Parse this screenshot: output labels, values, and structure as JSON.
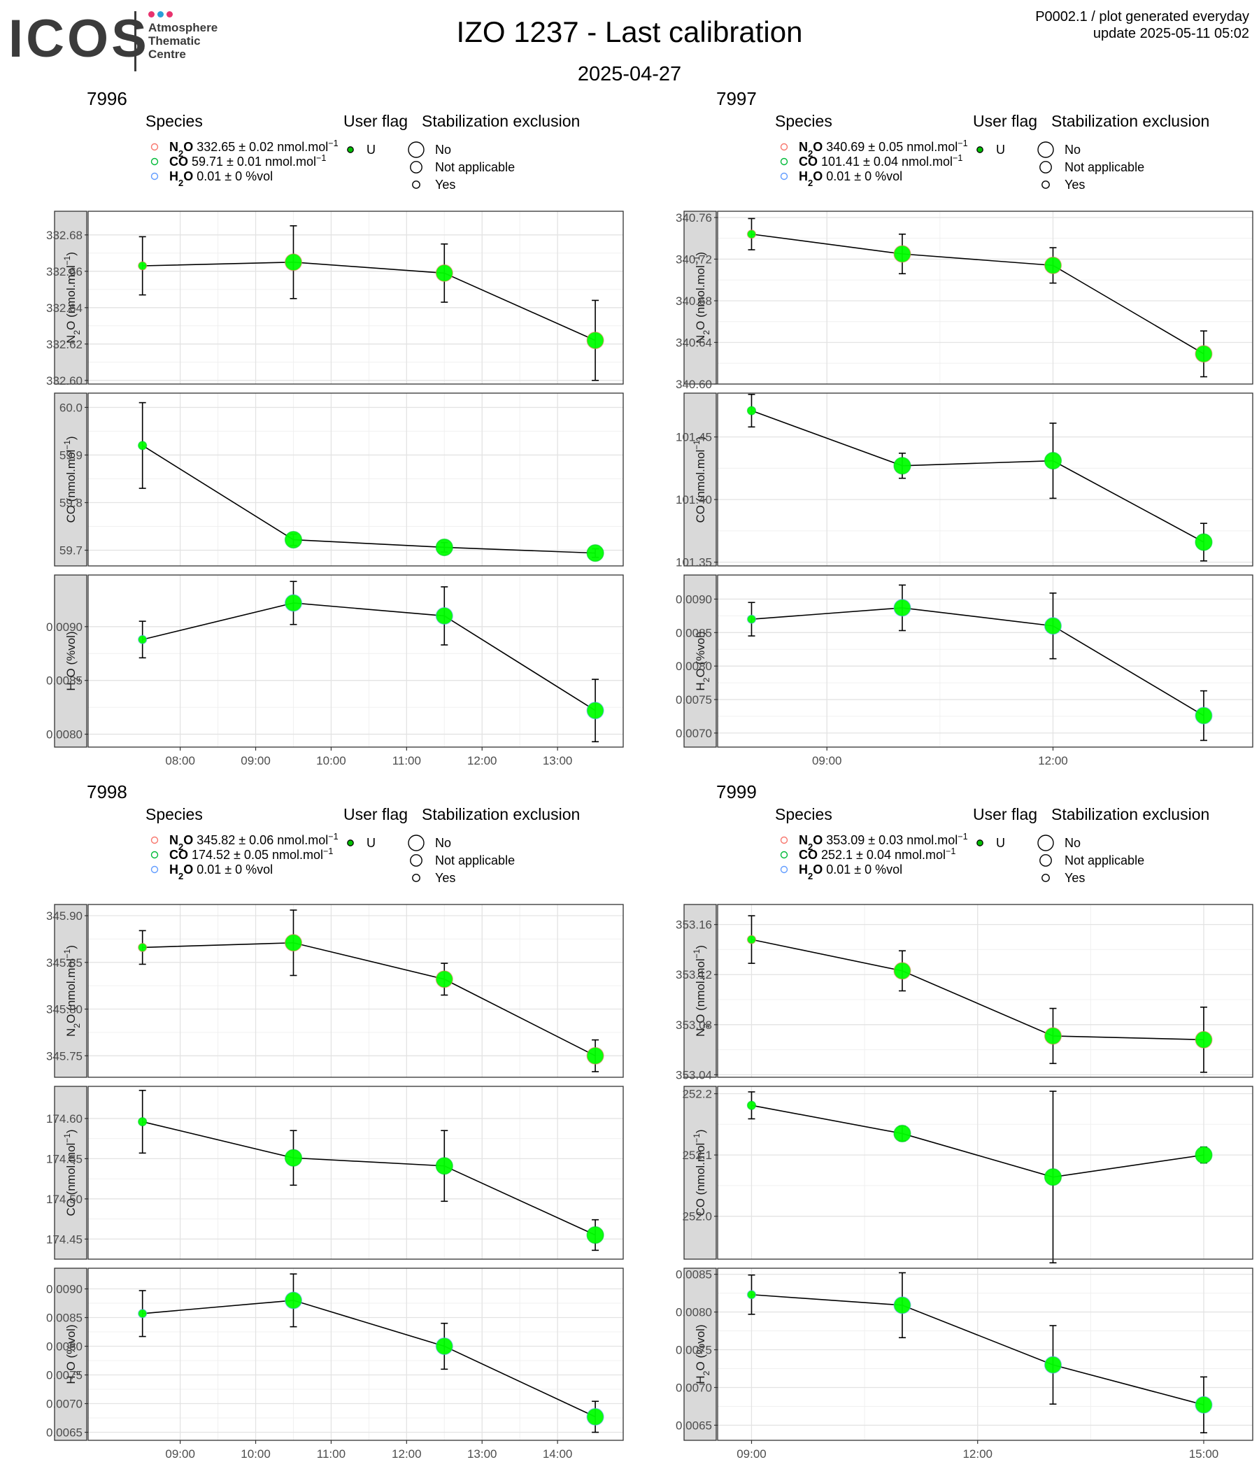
{
  "header": {
    "logo_text": "ICOS",
    "logo_sub": [
      "Atmosphere",
      "Thematic",
      "Centre"
    ],
    "logo_dot_colors": [
      "#e8336e",
      "#2a9fd8",
      "#e8336e"
    ],
    "title": "IZO 1237 - Last calibration",
    "subtitle": "2025-04-27",
    "meta_line1": "P0002.1 / plot generated everyday",
    "meta_line2": "update  2025-05-11 05:02"
  },
  "legend_labels": {
    "species_title": "Species",
    "user_flag_title": "User flag",
    "stab_title": "Stabilization exclusion",
    "user_flag_value": "U",
    "stab_values": [
      "No",
      "Not applicable",
      "Yes"
    ],
    "species_colors": [
      "#f8766d",
      "#00ba38",
      "#619cff"
    ],
    "point_color": "#00ff00",
    "flag_dot_color": "#00c000"
  },
  "chart_data": [
    {
      "type": "line",
      "title": "7996",
      "legend": [
        {
          "species": "N2O",
          "text": "332.65 ± 0.02 nmol.mol",
          "unit_sup": "−1"
        },
        {
          "species": "CO",
          "text": "59.71 ± 0.01 nmol.mol",
          "unit_sup": "−1"
        },
        {
          "species": "H2O",
          "text": "0.01 ± 0 %vol",
          "unit_sup": ""
        }
      ],
      "x_ticks": [
        "08:00",
        "09:00",
        "10:00",
        "11:00",
        "12:00",
        "13:00"
      ],
      "x_tick_hours": [
        8,
        9,
        10,
        11,
        12,
        13
      ],
      "xlim": [
        6.78,
        13.87
      ],
      "x_hours": [
        7.5,
        9.5,
        11.5,
        13.5
      ],
      "stab": [
        "Not applicable",
        "No",
        "No",
        "No"
      ],
      "panels": [
        {
          "species": "N2O",
          "ylabel": "N2O (nmol.mol-1)",
          "ylim": [
            332.598,
            332.693
          ],
          "yticks": [
            332.6,
            332.62,
            332.64,
            332.66,
            332.68
          ],
          "ytick_labels": [
            "332.60",
            "332.62",
            "332.64",
            "332.66",
            "332.68"
          ],
          "values": [
            332.663,
            332.665,
            332.659,
            332.622
          ],
          "errors": [
            0.016,
            0.02,
            0.016,
            0.022
          ]
        },
        {
          "species": "CO",
          "ylabel": "CO (nmol.mol-1)",
          "ylim": [
            59.667,
            60.03
          ],
          "yticks": [
            59.7,
            59.8,
            59.9,
            60.0
          ],
          "ytick_labels": [
            "59.7",
            "59.8",
            "59.9",
            "60.0"
          ],
          "values": [
            59.92,
            59.722,
            59.706,
            59.694
          ],
          "errors": [
            0.09,
            0.012,
            0.01,
            0.009
          ]
        },
        {
          "species": "H2O",
          "ylabel": "H2O (%vol)",
          "ylim": [
            0.00788,
            0.00948
          ],
          "yticks": [
            0.008,
            0.0085,
            0.009
          ],
          "ytick_labels": [
            "0.0080",
            "0.0085",
            "0.0090"
          ],
          "values": [
            0.00888,
            0.00922,
            0.0091,
            0.00822
          ],
          "errors": [
            0.00017,
            0.0002,
            0.00027,
            0.00029
          ]
        }
      ]
    },
    {
      "type": "line",
      "title": "7997",
      "legend": [
        {
          "species": "N2O",
          "text": "340.69 ± 0.05 nmol.mol",
          "unit_sup": "−1"
        },
        {
          "species": "CO",
          "text": "101.41 ± 0.04 nmol.mol",
          "unit_sup": "−1"
        },
        {
          "species": "H2O",
          "text": "0.01 ± 0 %vol",
          "unit_sup": ""
        }
      ],
      "x_ticks": [
        "09:00",
        "12:00"
      ],
      "x_tick_hours": [
        9,
        12
      ],
      "xlim": [
        7.55,
        14.65
      ],
      "x_hours": [
        8.0,
        10.0,
        12.0,
        14.0
      ],
      "stab": [
        "Not applicable",
        "No",
        "No",
        "No"
      ],
      "panels": [
        {
          "species": "N2O",
          "ylabel": "N2O (nmol.mol-1)",
          "ylim": [
            340.6,
            340.766
          ],
          "yticks": [
            340.6,
            340.64,
            340.68,
            340.72,
            340.76
          ],
          "ytick_labels": [
            "340.60",
            "340.64",
            "340.68",
            "340.72",
            "340.76"
          ],
          "values": [
            340.744,
            340.725,
            340.714,
            340.629
          ],
          "errors": [
            0.015,
            0.019,
            0.017,
            0.022
          ]
        },
        {
          "species": "CO",
          "ylabel": "CO (nmol.mol-1)",
          "ylim": [
            101.347,
            101.485
          ],
          "yticks": [
            101.35,
            101.4,
            101.45
          ],
          "ytick_labels": [
            "101.35",
            "101.40",
            "101.45"
          ],
          "values": [
            101.471,
            101.427,
            101.431,
            101.366
          ],
          "errors": [
            0.013,
            0.01,
            0.03,
            0.015
          ]
        },
        {
          "species": "H2O",
          "ylabel": "H2O (%vol)",
          "ylim": [
            0.00679,
            0.00936
          ],
          "yticks": [
            0.007,
            0.0075,
            0.008,
            0.0085,
            0.009
          ],
          "ytick_labels": [
            "0.0070",
            "0.0075",
            "0.0080",
            "0.0085",
            "0.0090"
          ],
          "values": [
            0.0087,
            0.00887,
            0.0086,
            0.00726
          ],
          "errors": [
            0.00025,
            0.00034,
            0.00049,
            0.00037
          ]
        }
      ]
    },
    {
      "type": "line",
      "title": "7998",
      "legend": [
        {
          "species": "N2O",
          "text": "345.82 ± 0.06 nmol.mol",
          "unit_sup": "−1"
        },
        {
          "species": "CO",
          "text": "174.52 ± 0.05 nmol.mol",
          "unit_sup": "−1"
        },
        {
          "species": "H2O",
          "text": "0.01 ± 0 %vol",
          "unit_sup": ""
        }
      ],
      "x_ticks": [
        "09:00",
        "10:00",
        "11:00",
        "12:00",
        "13:00",
        "14:00"
      ],
      "x_tick_hours": [
        9,
        10,
        11,
        12,
        13,
        14
      ],
      "xlim": [
        7.78,
        14.87
      ],
      "x_hours": [
        8.5,
        10.5,
        12.5,
        14.5
      ],
      "stab": [
        "Not applicable",
        "No",
        "No",
        "No"
      ],
      "panels": [
        {
          "species": "N2O",
          "ylabel": "N2O (nmol.mol-1)",
          "ylim": [
            345.727,
            345.912
          ],
          "yticks": [
            345.75,
            345.8,
            345.85,
            345.9
          ],
          "ytick_labels": [
            "345.75",
            "345.80",
            "345.85",
            "345.90"
          ],
          "values": [
            345.866,
            345.871,
            345.832,
            345.75
          ],
          "errors": [
            0.018,
            0.035,
            0.017,
            0.017
          ]
        },
        {
          "species": "CO",
          "ylabel": "CO (nmol.mol-1)",
          "ylim": [
            174.425,
            174.64
          ],
          "yticks": [
            174.45,
            174.5,
            174.55,
            174.6
          ],
          "ytick_labels": [
            "174.45",
            "174.50",
            "174.55",
            "174.60"
          ],
          "values": [
            174.596,
            174.551,
            174.541,
            174.455
          ],
          "errors": [
            0.039,
            0.034,
            0.044,
            0.019
          ]
        },
        {
          "species": "H2O",
          "ylabel": "H2O (%vol)",
          "ylim": [
            0.00636,
            0.00936
          ],
          "yticks": [
            0.0065,
            0.007,
            0.0075,
            0.008,
            0.0085,
            0.009
          ],
          "ytick_labels": [
            "0.0065",
            "0.0070",
            "0.0075",
            "0.0080",
            "0.0085",
            "0.0090"
          ],
          "values": [
            0.00857,
            0.0088,
            0.008,
            0.00677
          ],
          "errors": [
            0.0004,
            0.00046,
            0.0004,
            0.00027
          ]
        }
      ]
    },
    {
      "type": "line",
      "title": "7999",
      "legend": [
        {
          "species": "N2O",
          "text": "353.09 ± 0.03 nmol.mol",
          "unit_sup": "−1"
        },
        {
          "species": "CO",
          "text": "252.1 ± 0.04 nmol.mol",
          "unit_sup": "−1"
        },
        {
          "species": "H2O",
          "text": "0.01 ± 0 %vol",
          "unit_sup": ""
        }
      ],
      "x_ticks": [
        "09:00",
        "12:00",
        "15:00"
      ],
      "x_tick_hours": [
        9,
        12,
        15
      ],
      "xlim": [
        8.55,
        15.65
      ],
      "x_hours": [
        9.0,
        11.0,
        13.0,
        15.0
      ],
      "stab": [
        "Not applicable",
        "No",
        "No",
        "No"
      ],
      "panels": [
        {
          "species": "N2O",
          "ylabel": "N2O (nmol.mol-1)",
          "ylim": [
            353.038,
            353.176
          ],
          "yticks": [
            353.04,
            353.08,
            353.12,
            353.16
          ],
          "ytick_labels": [
            "353.04",
            "353.08",
            "353.12",
            "353.16"
          ],
          "values": [
            353.148,
            353.123,
            353.071,
            353.068
          ],
          "errors": [
            0.019,
            0.016,
            0.022,
            0.026
          ]
        },
        {
          "species": "CO",
          "ylabel": "CO (nmol.mol-1)",
          "ylim": [
            251.93,
            252.212
          ],
          "yticks": [
            252.0,
            252.1,
            252.2
          ],
          "ytick_labels": [
            "252.0",
            "252.1",
            "252.2"
          ],
          "values": [
            252.181,
            252.135,
            252.064,
            252.1
          ],
          "errors": [
            0.022,
            0.012,
            0.14,
            0.013
          ]
        },
        {
          "species": "H2O",
          "ylabel": "H2O (%vol)",
          "ylim": [
            0.0063,
            0.00858
          ],
          "yticks": [
            0.0065,
            0.007,
            0.0075,
            0.008,
            0.0085
          ],
          "ytick_labels": [
            "0.0065",
            "0.0070",
            "0.0075",
            "0.0080",
            "0.0085"
          ],
          "values": [
            0.00823,
            0.00809,
            0.0073,
            0.00677
          ],
          "errors": [
            0.00026,
            0.00043,
            0.00052,
            0.00037
          ]
        }
      ]
    }
  ]
}
